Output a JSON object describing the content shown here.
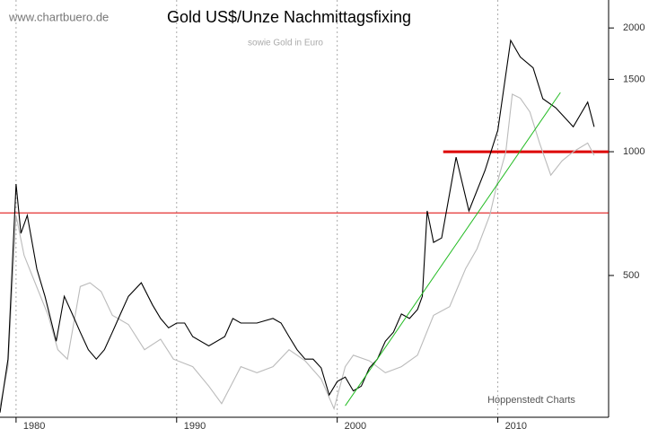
{
  "chart_data": {
    "type": "line",
    "title": "Gold US$/Unze Nachmittagsfixing",
    "subtitle": "sowie Gold in Euro",
    "source": "www.chartbuero.de",
    "credit": "Hoppenstedt Charts",
    "log_scale": true,
    "grid": true,
    "xlim": [
      1979,
      2016.9
    ],
    "xticks": [
      1980,
      1990,
      2000,
      2010
    ],
    "ylim": [
      226,
      2339
    ],
    "yticks": [
      500,
      1000,
      1500,
      2000
    ],
    "series": [
      {
        "color": "#bbbbbb",
        "x": [
          1979.0,
          1979.5,
          1980.0,
          1980.5,
          1981.0,
          1982.0,
          1982.6,
          1983.2,
          1984.0,
          1984.6,
          1985.3,
          1986.0,
          1987.0,
          1988.0,
          1989.0,
          1989.8,
          1991.0,
          1992.0,
          1992.8,
          1994.0,
          1995.0,
          1996.0,
          1997.0,
          1998.0,
          1999.0,
          1999.8,
          2000.5,
          2001.0,
          2002.0,
          2003.0,
          2004.0,
          2005.0,
          2006.0,
          2007.0,
          2008.0,
          2008.7,
          2009.5,
          2010.0,
          2010.5,
          2010.9,
          2011.4,
          2012.0,
          2012.6,
          2013.3,
          2014.0,
          2014.7,
          2015.6,
          2016.0
        ],
        "values": [
          240,
          300,
          700,
          560,
          500,
          400,
          330,
          313,
          470,
          480,
          457,
          400,
          380,
          330,
          350,
          313,
          300,
          269,
          244,
          300,
          290,
          300,
          330,
          310,
          280,
          237,
          300,
          320,
          310,
          290,
          300,
          320,
          400,
          420,
          520,
          580,
          700,
          850,
          1000,
          1380,
          1350,
          1250,
          1050,
          877,
          950,
          1000,
          1050,
          980
        ]
      },
      {
        "color": "#000000",
        "x": [
          1979.0,
          1979.5,
          1980.0,
          1980.3,
          1980.7,
          1981.3,
          1981.8,
          1982.5,
          1983.0,
          1983.5,
          1984.0,
          1984.5,
          1985.0,
          1985.5,
          1986.0,
          1986.5,
          1987.0,
          1987.8,
          1988.5,
          1989.0,
          1989.5,
          1990.0,
          1990.5,
          1991.0,
          1992.0,
          1993.0,
          1993.5,
          1994.0,
          1995.0,
          1996.0,
          1996.5,
          1997.0,
          1997.5,
          1998.0,
          1998.5,
          1999.0,
          1999.5,
          2000.0,
          2000.5,
          2001.0,
          2001.5,
          2002.0,
          2002.5,
          2003.0,
          2003.5,
          2004.0,
          2004.5,
          2005.0,
          2005.3,
          2005.6,
          2006.0,
          2006.5,
          2007.4,
          2008.2,
          2009.2,
          2010.0,
          2010.8,
          2011.4,
          2012.2,
          2012.8,
          2013.6,
          2014.7,
          2015.6,
          2016.0
        ],
        "values": [
          232,
          313,
          835,
          633,
          700,
          518,
          445,
          346,
          445,
          403,
          364,
          330,
          313,
          330,
          364,
          403,
          445,
          480,
          424,
          393,
          373,
          383,
          383,
          355,
          337,
          355,
          393,
          383,
          383,
          393,
          383,
          355,
          330,
          313,
          313,
          298,
          256,
          276,
          283,
          262,
          269,
          298,
          313,
          346,
          364,
          403,
          393,
          413,
          445,
          718,
          602,
          617,
          970,
          718,
          900,
          1128,
          1866,
          1700,
          1600,
          1346,
          1280,
          1150,
          1320,
          1150
        ]
      }
    ],
    "trend": {
      "color": "#22bb22",
      "x": [
        2000.5,
        2013.9
      ],
      "values": [
        241,
        1393
      ]
    },
    "hlines": [
      {
        "color": "#dd0000",
        "value": 710,
        "from": 1979,
        "width": 1
      },
      {
        "color": "#dd0000",
        "value": 1000,
        "from": 2006.6,
        "width": 3
      }
    ]
  }
}
